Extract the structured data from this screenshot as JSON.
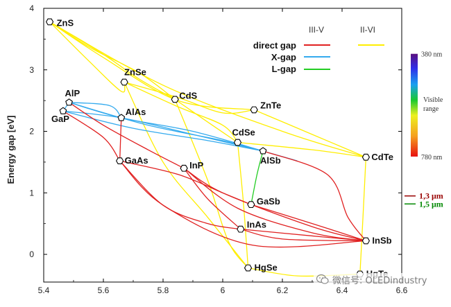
{
  "chart_data": {
    "type": "scatter",
    "title": "",
    "xlabel": "",
    "ylabel": "Energy gap [eV]",
    "xlim": [
      5.4,
      6.6
    ],
    "ylim": [
      -0.45,
      4.0
    ],
    "xticks": [
      5.4,
      5.6,
      5.8,
      6.0,
      6.2,
      6.4,
      6.6
    ],
    "yticks": [
      0,
      1,
      2,
      3,
      4
    ],
    "points": [
      {
        "name": "ZnS",
        "x": 5.42,
        "y": 3.78,
        "marker": "hexagon"
      },
      {
        "name": "ZnSe",
        "x": 5.67,
        "y": 2.8,
        "marker": "hexagon"
      },
      {
        "name": "CdS",
        "x": 5.84,
        "y": 2.52,
        "marker": "hexagon"
      },
      {
        "name": "ZnTe",
        "x": 6.105,
        "y": 2.35,
        "marker": "hexagon"
      },
      {
        "name": "AlP",
        "x": 5.485,
        "y": 2.47,
        "marker": "pentagon"
      },
      {
        "name": "GaP",
        "x": 5.465,
        "y": 2.33,
        "marker": "pentagon"
      },
      {
        "name": "AlAs",
        "x": 5.66,
        "y": 2.22,
        "marker": "pentagon"
      },
      {
        "name": "CdSe",
        "x": 6.05,
        "y": 1.82,
        "marker": "hexagon"
      },
      {
        "name": "AlSb",
        "x": 6.135,
        "y": 1.68,
        "marker": "pentagon"
      },
      {
        "name": "CdTe",
        "x": 6.48,
        "y": 1.58,
        "marker": "hexagon"
      },
      {
        "name": "GaAs",
        "x": 5.655,
        "y": 1.52,
        "marker": "hexagon"
      },
      {
        "name": "InP",
        "x": 5.87,
        "y": 1.4,
        "marker": "hexagon"
      },
      {
        "name": "GaSb",
        "x": 6.095,
        "y": 0.81,
        "marker": "hexagon"
      },
      {
        "name": "InAs",
        "x": 6.06,
        "y": 0.41,
        "marker": "hexagon"
      },
      {
        "name": "InSb",
        "x": 6.48,
        "y": 0.22,
        "marker": "hexagon"
      },
      {
        "name": "HgSe",
        "x": 6.085,
        "y": -0.22,
        "marker": "hexagon"
      },
      {
        "name": "HgTe",
        "x": 6.46,
        "y": -0.32,
        "marker": "hexagon"
      }
    ],
    "curves": [
      {
        "family": "II-VI",
        "type": "direct",
        "color": "#ffee00",
        "pts": [
          [
            5.42,
            3.78
          ],
          [
            5.56,
            3.35
          ],
          [
            5.72,
            2.95
          ],
          [
            5.84,
            2.52
          ]
        ]
      },
      {
        "family": "II-VI",
        "type": "direct",
        "color": "#ffee00",
        "pts": [
          [
            5.42,
            3.78
          ],
          [
            5.6,
            3.25
          ],
          [
            5.72,
            2.85
          ],
          [
            5.84,
            2.52
          ]
        ]
      },
      {
        "family": "II-VI",
        "type": "direct",
        "color": "#ffee00",
        "pts": [
          [
            5.42,
            3.78
          ],
          [
            5.6,
            3.2
          ],
          [
            5.85,
            2.5
          ],
          [
            6.105,
            2.35
          ]
        ]
      },
      {
        "family": "II-VI",
        "type": "direct",
        "color": "#ffee00",
        "pts": [
          [
            5.42,
            3.78
          ],
          [
            5.55,
            3.15
          ],
          [
            5.66,
            2.65
          ],
          [
            5.67,
            2.8
          ]
        ]
      },
      {
        "family": "II-VI",
        "type": "direct",
        "color": "#ffee00",
        "pts": [
          [
            5.67,
            2.8
          ],
          [
            5.85,
            2.55
          ],
          [
            6.0,
            2.3
          ],
          [
            6.105,
            2.35
          ]
        ]
      },
      {
        "family": "II-VI",
        "type": "direct",
        "color": "#ffee00",
        "pts": [
          [
            5.67,
            2.8
          ],
          [
            5.85,
            2.4
          ],
          [
            6.0,
            2.1
          ],
          [
            6.05,
            1.82
          ]
        ]
      },
      {
        "family": "II-VI",
        "type": "direct",
        "color": "#ffee00",
        "pts": [
          [
            5.84,
            2.52
          ],
          [
            5.95,
            2.15
          ],
          [
            6.05,
            1.82
          ]
        ]
      },
      {
        "family": "II-VI",
        "type": "direct",
        "color": "#ffee00",
        "pts": [
          [
            5.42,
            3.78
          ],
          [
            5.8,
            2.75
          ],
          [
            6.2,
            2.0
          ],
          [
            6.48,
            1.58
          ]
        ]
      },
      {
        "family": "II-VI",
        "type": "direct",
        "color": "#ffee00",
        "pts": [
          [
            6.105,
            2.35
          ],
          [
            6.3,
            1.95
          ],
          [
            6.48,
            1.58
          ]
        ]
      },
      {
        "family": "II-VI",
        "type": "direct",
        "color": "#ffee00",
        "pts": [
          [
            6.05,
            1.82
          ],
          [
            6.3,
            1.7
          ],
          [
            6.48,
            1.58
          ]
        ]
      },
      {
        "family": "II-VI",
        "type": "direct",
        "color": "#ffee00",
        "pts": [
          [
            6.05,
            1.82
          ],
          [
            6.07,
            0.8
          ],
          [
            6.085,
            -0.22
          ]
        ]
      },
      {
        "family": "II-VI",
        "type": "direct",
        "color": "#ffee00",
        "pts": [
          [
            6.48,
            1.58
          ],
          [
            6.47,
            0.6
          ],
          [
            6.46,
            -0.32
          ]
        ]
      },
      {
        "family": "II-VI",
        "type": "direct",
        "color": "#ffee00",
        "pts": [
          [
            5.67,
            2.8
          ],
          [
            5.8,
            1.5
          ],
          [
            5.95,
            0.6
          ],
          [
            6.085,
            -0.22
          ]
        ]
      },
      {
        "family": "II-VI",
        "type": "direct",
        "color": "#ffee00",
        "pts": [
          [
            5.84,
            2.52
          ],
          [
            5.95,
            1.2
          ],
          [
            6.02,
            0.2
          ],
          [
            6.085,
            -0.22
          ]
        ]
      },
      {
        "family": "II-VI",
        "type": "direct",
        "color": "#ffee00",
        "pts": [
          [
            6.085,
            -0.22
          ],
          [
            6.25,
            -0.35
          ],
          [
            6.46,
            -0.32
          ]
        ]
      },
      {
        "family": "III-V",
        "type": "X-gap",
        "color": "#33aaee",
        "pts": [
          [
            5.485,
            2.47
          ],
          [
            5.66,
            2.22
          ],
          [
            5.9,
            2.0
          ],
          [
            6.135,
            1.68
          ]
        ]
      },
      {
        "family": "III-V",
        "type": "X-gap",
        "color": "#33aaee",
        "pts": [
          [
            5.465,
            2.33
          ],
          [
            5.66,
            2.22
          ],
          [
            5.9,
            1.95
          ],
          [
            6.135,
            1.68
          ]
        ]
      },
      {
        "family": "III-V",
        "type": "X-gap",
        "color": "#33aaee",
        "pts": [
          [
            5.465,
            2.33
          ],
          [
            5.7,
            2.05
          ],
          [
            5.95,
            1.85
          ],
          [
            6.135,
            1.68
          ]
        ]
      },
      {
        "family": "III-V",
        "type": "X-gap",
        "color": "#33aaee",
        "pts": [
          [
            5.485,
            2.47
          ],
          [
            5.75,
            2.1
          ],
          [
            6.0,
            1.85
          ],
          [
            6.135,
            1.68
          ]
        ]
      },
      {
        "family": "III-V",
        "type": "X-gap",
        "color": "#33aaee",
        "pts": [
          [
            5.485,
            2.47
          ],
          [
            5.62,
            2.42
          ],
          [
            5.66,
            2.22
          ]
        ]
      },
      {
        "family": "III-V",
        "type": "X-gap",
        "color": "#33aaee",
        "pts": [
          [
            5.465,
            2.33
          ],
          [
            5.485,
            2.47
          ]
        ]
      },
      {
        "family": "III-V",
        "type": "X-gap",
        "color": "#33aaee",
        "pts": [
          [
            6.135,
            1.68
          ],
          [
            6.25,
            1.52
          ]
        ]
      },
      {
        "family": "III-V",
        "type": "L-gap",
        "color": "#22cc22",
        "pts": [
          [
            6.135,
            1.68
          ],
          [
            6.115,
            1.3
          ],
          [
            6.095,
            0.81
          ]
        ]
      },
      {
        "family": "III-V",
        "type": "direct",
        "color": "#e02020",
        "pts": [
          [
            5.465,
            2.33
          ],
          [
            5.6,
            1.9
          ],
          [
            5.655,
            1.52
          ]
        ]
      },
      {
        "family": "III-V",
        "type": "direct",
        "color": "#e02020",
        "pts": [
          [
            5.66,
            2.22
          ],
          [
            5.655,
            1.52
          ]
        ]
      },
      {
        "family": "III-V",
        "type": "direct",
        "color": "#e02020",
        "pts": [
          [
            5.485,
            2.47
          ],
          [
            5.6,
            2.1
          ],
          [
            5.75,
            1.7
          ],
          [
            5.87,
            1.4
          ]
        ]
      },
      {
        "family": "III-V",
        "type": "direct",
        "color": "#e02020",
        "pts": [
          [
            5.655,
            1.52
          ],
          [
            5.85,
            1.3
          ],
          [
            6.0,
            1.0
          ],
          [
            6.095,
            0.81
          ]
        ]
      },
      {
        "family": "III-V",
        "type": "direct",
        "color": "#e02020",
        "pts": [
          [
            5.655,
            1.52
          ],
          [
            5.8,
            0.8
          ],
          [
            5.95,
            0.5
          ],
          [
            6.06,
            0.41
          ]
        ]
      },
      {
        "family": "III-V",
        "type": "direct",
        "color": "#e02020",
        "pts": [
          [
            5.655,
            1.52
          ],
          [
            5.8,
            0.8
          ],
          [
            6.1,
            0.15
          ],
          [
            6.48,
            0.22
          ]
        ]
      },
      {
        "family": "III-V",
        "type": "direct",
        "color": "#e02020",
        "pts": [
          [
            5.87,
            1.4
          ],
          [
            5.95,
            0.9
          ],
          [
            6.06,
            0.41
          ]
        ]
      },
      {
        "family": "III-V",
        "type": "direct",
        "color": "#e02020",
        "pts": [
          [
            5.87,
            1.4
          ],
          [
            6.0,
            1.0
          ],
          [
            6.3,
            0.45
          ],
          [
            6.48,
            0.22
          ]
        ]
      },
      {
        "family": "III-V",
        "type": "direct",
        "color": "#e02020",
        "pts": [
          [
            5.87,
            1.4
          ],
          [
            6.05,
            0.75
          ],
          [
            6.3,
            0.35
          ],
          [
            6.48,
            0.22
          ]
        ]
      },
      {
        "family": "III-V",
        "type": "direct",
        "color": "#e02020",
        "pts": [
          [
            6.095,
            0.81
          ],
          [
            6.3,
            0.5
          ],
          [
            6.48,
            0.22
          ]
        ]
      },
      {
        "family": "III-V",
        "type": "direct",
        "color": "#e02020",
        "pts": [
          [
            6.06,
            0.41
          ],
          [
            6.3,
            0.3
          ],
          [
            6.48,
            0.22
          ]
        ]
      },
      {
        "family": "III-V",
        "type": "direct",
        "color": "#e02020",
        "pts": [
          [
            6.135,
            1.68
          ],
          [
            6.35,
            1.3
          ],
          [
            6.42,
            0.6
          ],
          [
            6.48,
            0.22
          ]
        ]
      },
      {
        "family": "III-V",
        "type": "direct",
        "color": "#e02020",
        "pts": [
          [
            6.06,
            0.41
          ],
          [
            6.2,
            0.25
          ],
          [
            6.48,
            0.22
          ]
        ]
      }
    ],
    "legend": {
      "position": "top-right",
      "headers": [
        "III-V",
        "II-VI"
      ],
      "rows": [
        {
          "label": "direct gap",
          "iiiv_color": "#e02020",
          "iivi_color": "#ffee00"
        },
        {
          "label": "X-gap",
          "iiiv_color": "#33aaee",
          "iivi_color": ""
        },
        {
          "label": "L-gap",
          "iiiv_color": "#22cc22",
          "iivi_color": ""
        }
      ]
    },
    "color_scale": {
      "top_label": "380 nm",
      "bottom_label": "780 nm",
      "side_label_1": "Visible",
      "side_label_2": "range",
      "ymax": 3.26,
      "ymin": 1.59
    },
    "right_markers": [
      {
        "label": "1,3 μm",
        "y": 0.95,
        "color": "#990000"
      },
      {
        "label": "1,5 μm",
        "y": 0.82,
        "color": "#008800"
      }
    ]
  },
  "watermark": {
    "text": "微信号: OLEDindustry"
  }
}
